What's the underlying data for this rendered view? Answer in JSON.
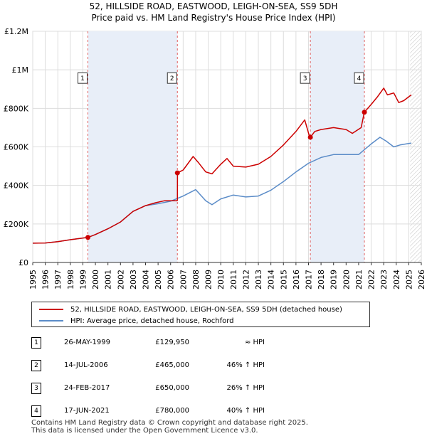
{
  "chart_data": {
    "type": "line",
    "title": "52, HILLSIDE ROAD, EASTWOOD, LEIGH-ON-SEA, SS9 5DH",
    "subtitle": "Price paid vs. HM Land Registry's House Price Index (HPI)",
    "xlim": [
      1995,
      2026
    ],
    "ylim": [
      0,
      1200000
    ],
    "x_ticks": [
      "1995",
      "1996",
      "1997",
      "1998",
      "1999",
      "2000",
      "2001",
      "2002",
      "2003",
      "2004",
      "2005",
      "2006",
      "2007",
      "2008",
      "2009",
      "2010",
      "2011",
      "2012",
      "2013",
      "2014",
      "2015",
      "2016",
      "2017",
      "2018",
      "2019",
      "2020",
      "2021",
      "2022",
      "2023",
      "2024",
      "2025",
      "2026"
    ],
    "y_ticks": [
      {
        "value": 0,
        "label": "£0"
      },
      {
        "value": 200000,
        "label": "£200K"
      },
      {
        "value": 400000,
        "label": "£400K"
      },
      {
        "value": 600000,
        "label": "£600K"
      },
      {
        "value": 800000,
        "label": "£800K"
      },
      {
        "value": 1000000,
        "label": "£1M"
      },
      {
        "value": 1200000,
        "label": "£1.2M"
      }
    ],
    "grid": true,
    "colors": {
      "property": "#cc0000",
      "hpi": "#5b8cc8",
      "shade": "#e8eef8",
      "future_hatch": "#999999"
    },
    "series": [
      {
        "name": "52, HILLSIDE ROAD, EASTWOOD, LEIGH-ON-SEA, SS9 5DH (detached house)",
        "x": [
          1995.0,
          1996.0,
          1997.0,
          1998.0,
          1999.4,
          1999.41,
          2000.0,
          2001.0,
          2002.0,
          2003.0,
          2004.0,
          2004.8,
          2005.5,
          2006.5,
          2006.54,
          2006.55,
          2007.0,
          2007.8,
          2008.2,
          2008.8,
          2009.3,
          2010.0,
          2010.5,
          2011.0,
          2012.0,
          2013.0,
          2014.0,
          2015.0,
          2016.0,
          2016.7,
          2017.1,
          2017.15,
          2017.5,
          2018.0,
          2019.0,
          2020.0,
          2020.5,
          2021.2,
          2021.45,
          2021.46,
          2022.0,
          2022.5,
          2023.0,
          2023.3,
          2023.8,
          2024.2,
          2024.6,
          2025.2
        ],
        "values": [
          100000,
          101000,
          108000,
          118000,
          129950,
          129950,
          145000,
          175000,
          210000,
          265000,
          295000,
          310000,
          320000,
          320000,
          322000,
          465000,
          480000,
          550000,
          520000,
          470000,
          460000,
          510000,
          540000,
          500000,
          495000,
          510000,
          550000,
          610000,
          680000,
          740000,
          650000,
          650000,
          680000,
          690000,
          700000,
          690000,
          670000,
          700000,
          780000,
          780000,
          820000,
          860000,
          905000,
          870000,
          880000,
          830000,
          840000,
          870000
        ]
      },
      {
        "name": "HPI: Average price, detached house, Rochford",
        "x": [
          1995.0,
          1996.0,
          1997.0,
          1998.0,
          1999.4,
          2000.0,
          2001.0,
          2002.0,
          2003.0,
          2004.0,
          2005.0,
          2006.0,
          2007.0,
          2008.0,
          2008.8,
          2009.3,
          2010.0,
          2011.0,
          2012.0,
          2013.0,
          2014.0,
          2015.0,
          2016.0,
          2017.0,
          2018.0,
          2019.0,
          2020.0,
          2021.0,
          2022.0,
          2022.7,
          2023.2,
          2023.8,
          2024.3,
          2025.2
        ],
        "values": [
          100000,
          101000,
          108000,
          118000,
          129950,
          145000,
          175000,
          210000,
          265000,
          295000,
          305000,
          318000,
          345000,
          378000,
          320000,
          300000,
          330000,
          350000,
          340000,
          345000,
          375000,
          420000,
          470000,
          515000,
          545000,
          560000,
          560000,
          560000,
          615000,
          650000,
          630000,
          600000,
          610000,
          620000
        ]
      }
    ],
    "annotations": [
      {
        "label": "1",
        "x": 1999.4,
        "value": 129950
      },
      {
        "label": "2",
        "x": 2006.54,
        "value": 465000
      },
      {
        "label": "3",
        "x": 2017.15,
        "value": 650000
      },
      {
        "label": "4",
        "x": 2021.46,
        "value": 780000
      }
    ]
  },
  "legend": {
    "property_label": "52, HILLSIDE ROAD, EASTWOOD, LEIGH-ON-SEA, SS9 5DH (detached house)",
    "hpi_label": "HPI: Average price, detached house, Rochford"
  },
  "sales": [
    {
      "num": "1",
      "date": "26-MAY-1999",
      "price": "£129,950",
      "hpi": "≈ HPI"
    },
    {
      "num": "2",
      "date": "14-JUL-2006",
      "price": "£465,000",
      "hpi": "46% ↑ HPI"
    },
    {
      "num": "3",
      "date": "24-FEB-2017",
      "price": "£650,000",
      "hpi": "26% ↑ HPI"
    },
    {
      "num": "4",
      "date": "17-JUN-2021",
      "price": "£780,000",
      "hpi": "40% ↑ HPI"
    }
  ],
  "footer": {
    "line1": "Contains HM Land Registry data © Crown copyright and database right 2025.",
    "line2": "This data is licensed under the Open Government Licence v3.0."
  }
}
